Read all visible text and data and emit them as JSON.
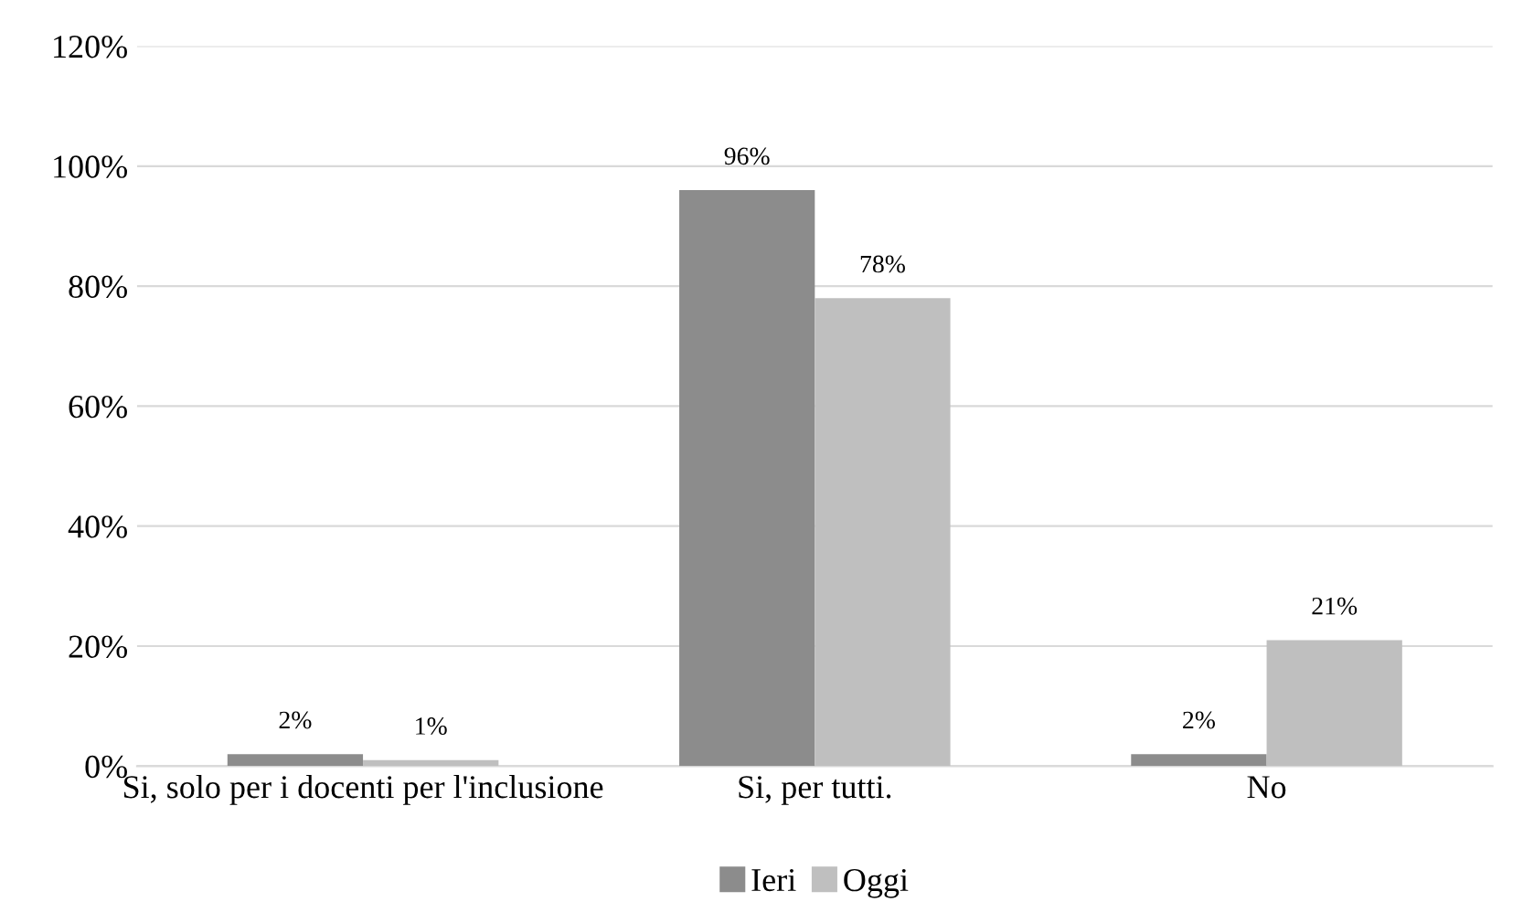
{
  "chart_data": {
    "type": "bar",
    "categories": [
      "Si, solo per i docenti per l'inclusione",
      "Si, per tutti.",
      "No"
    ],
    "series": [
      {
        "name": "Ieri",
        "color": "#8c8c8c",
        "values": [
          2,
          96,
          2
        ],
        "value_labels": [
          "2%",
          "96%",
          "2%"
        ]
      },
      {
        "name": "Oggi",
        "color": "#bfbfbf",
        "values": [
          1,
          78,
          21
        ],
        "value_labels": [
          "1%",
          "78%",
          "21%"
        ]
      }
    ],
    "ylim": [
      0,
      120
    ],
    "yticks": [
      {
        "value": 0,
        "label": "0%"
      },
      {
        "value": 20,
        "label": "20%"
      },
      {
        "value": 40,
        "label": "40%"
      },
      {
        "value": 60,
        "label": "60%"
      },
      {
        "value": 80,
        "label": "80%"
      },
      {
        "value": 100,
        "label": "100%"
      },
      {
        "value": 120,
        "label": "120%"
      }
    ],
    "grid": "y",
    "legend": "bottom"
  }
}
